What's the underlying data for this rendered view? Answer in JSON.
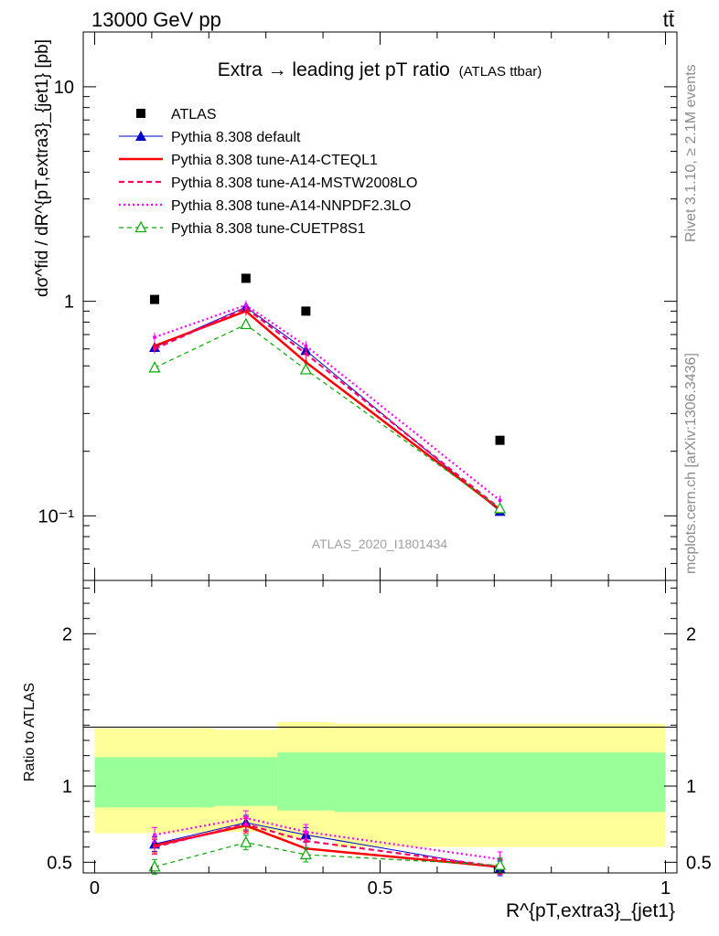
{
  "header": {
    "left": "13000 GeV pp",
    "right": "tt̄"
  },
  "side_labels": {
    "rivet": "Rivet 3.1.10, ≥ 2.1M events",
    "site": "mcplots.cern.ch [arXiv:1306.3436]"
  },
  "chart_data": [
    {
      "type": "line",
      "title": "Extra → leading jet pT ratio",
      "subtitle": "(ATLAS ttbar)",
      "watermark": "ATLAS_2020_I1801434",
      "ylabel": "dσ^fid / dR^{pT,extra3}_{jet1} [pb]",
      "yscale": "log",
      "ylim": [
        0.05,
        18
      ],
      "xlim": [
        -0.02,
        1.02
      ],
      "y_tick_labels": [
        "10⁻¹",
        "1",
        "10"
      ],
      "legend_position": "top-left",
      "x": [
        0.105,
        0.265,
        0.37,
        0.71
      ],
      "series": [
        {
          "name": "ATLAS",
          "color": "#000000",
          "values": [
            1.02,
            1.28,
            0.9,
            0.225
          ]
        },
        {
          "name": "Pythia 8.308 default",
          "color": "#0000cc",
          "values": [
            0.61,
            0.94,
            0.59,
            0.105
          ]
        },
        {
          "name": "Pythia 8.308 tune-A14-CTEQL1",
          "color": "#ff0000",
          "values": [
            0.62,
            0.9,
            0.52,
            0.107
          ]
        },
        {
          "name": "Pythia 8.308 tune-A14-MSTW2008LO",
          "color": "#ff0066",
          "values": [
            0.6,
            0.93,
            0.57,
            0.108
          ]
        },
        {
          "name": "Pythia 8.308 tune-A14-NNPDF2.3LO",
          "color": "#ff00ff",
          "values": [
            0.68,
            0.96,
            0.62,
            0.118
          ]
        },
        {
          "name": "Pythia 8.308 tune-CUETP8S1",
          "color": "#00aa00",
          "values": [
            0.49,
            0.78,
            0.48,
            0.108
          ]
        }
      ]
    },
    {
      "type": "line",
      "title": "",
      "xlabel": "R^{pT,extra3}_{jet1}",
      "ylabel": "Ratio to ATLAS",
      "ylim": [
        0.43,
        2.35
      ],
      "xlim": [
        -0.02,
        1.02
      ],
      "x_ticks": [
        0,
        0.5,
        1
      ],
      "y_ticks": [
        0.5,
        1,
        2
      ],
      "bins": [
        0.0,
        0.21,
        0.32,
        0.42,
        1.0
      ],
      "band_outer": [
        [
          0.69,
          1.38
        ],
        [
          0.7,
          1.37
        ],
        [
          0.66,
          1.42
        ],
        [
          0.6,
          1.41
        ]
      ],
      "band_inner": [
        [
          0.86,
          1.19
        ],
        [
          0.87,
          1.19
        ],
        [
          0.84,
          1.22
        ],
        [
          0.83,
          1.22
        ]
      ],
      "x": [
        0.105,
        0.265,
        0.37,
        0.71
      ],
      "series": [
        {
          "name": "Pythia 8.308 default",
          "values": [
            0.62,
            0.76,
            0.68,
            0.46
          ]
        },
        {
          "name": "Pythia 8.308 tune-A14-CTEQL1",
          "values": [
            0.61,
            0.74,
            0.59,
            0.47
          ]
        },
        {
          "name": "Pythia 8.308 tune-A14-MSTW2008LO",
          "values": [
            0.6,
            0.75,
            0.64,
            0.47
          ]
        },
        {
          "name": "Pythia 8.308 tune-A14-NNPDF2.3LO",
          "values": [
            0.68,
            0.79,
            0.7,
            0.52
          ]
        },
        {
          "name": "Pythia 8.308 tune-CUETP8S1",
          "values": [
            0.47,
            0.63,
            0.55,
            0.48
          ]
        }
      ]
    }
  ]
}
